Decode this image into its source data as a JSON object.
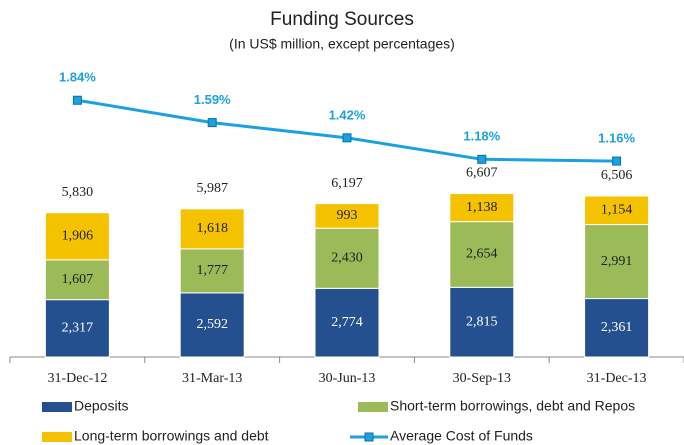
{
  "chart_data": {
    "type": "bar",
    "stacked": true,
    "title": "Funding Sources",
    "subtitle": "(In US$ million, except percentages)",
    "categories": [
      "31-Dec-12",
      "31-Mar-13",
      "30-Jun-13",
      "30-Sep-13",
      "31-Dec-13"
    ],
    "series": [
      {
        "name": "Deposits",
        "color": "#24508f",
        "values": [
          2317,
          2592,
          2774,
          2815,
          2361
        ],
        "value_labels": [
          "2,317",
          "2,592",
          "2,774",
          "2,815",
          "2,361"
        ]
      },
      {
        "name": "Short-term borrowings, debt and Repos",
        "color": "#9bbb59",
        "values": [
          1607,
          1777,
          2430,
          2654,
          2991
        ],
        "value_labels": [
          "1,607",
          "1,777",
          "2,430",
          "2,654",
          "2,991"
        ]
      },
      {
        "name": "Long-term borrowings and debt",
        "color": "#f5c200",
        "values": [
          1906,
          1618,
          993,
          1138,
          1154
        ],
        "value_labels": [
          "1,906",
          "1,618",
          "993",
          "1,138",
          "1,154"
        ]
      },
      {
        "name": "Average Cost of Funds",
        "type": "line",
        "axis": "y2",
        "color": "#1ba1e2",
        "values": [
          1.84,
          1.59,
          1.42,
          1.18,
          1.16
        ],
        "value_labels": [
          "1.84%",
          "1.59%",
          "1.42%",
          "1.18%",
          "1.16%"
        ]
      }
    ],
    "totals": [
      5830,
      5987,
      6197,
      6607,
      6506
    ],
    "total_labels": [
      "5,830",
      "5,987",
      "6,197",
      "6,607",
      "6,506"
    ],
    "ylim": [
      0,
      12000
    ],
    "y2lim": [
      -1.03,
      2.29
    ]
  }
}
